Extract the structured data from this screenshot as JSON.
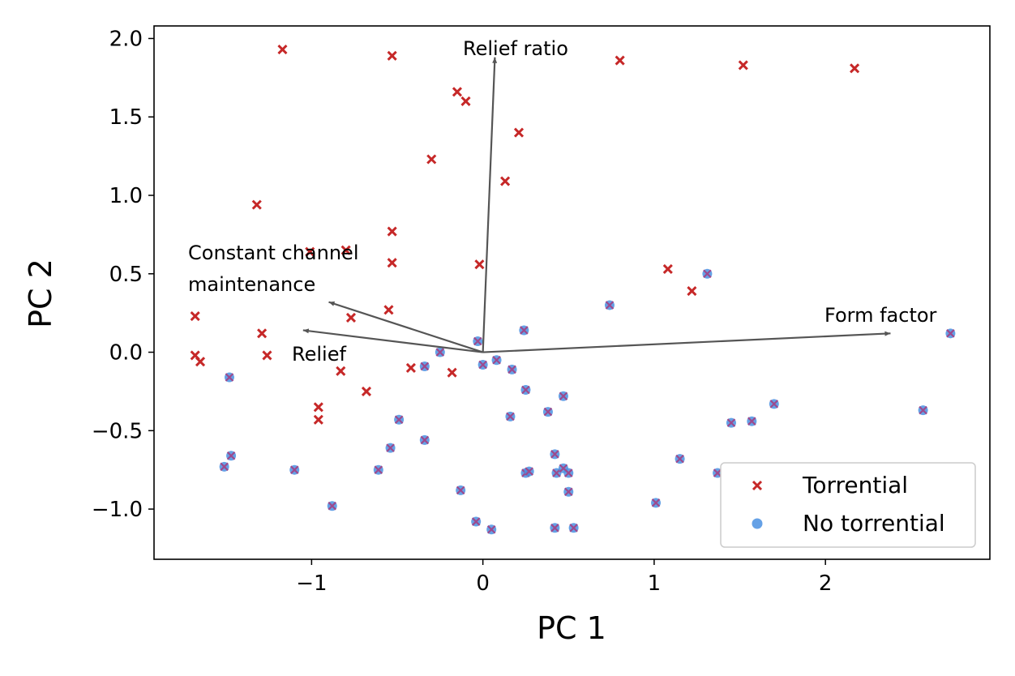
{
  "chart_data": {
    "type": "scatter",
    "xlabel": "PC 1",
    "ylabel": "PC 2",
    "xlim": [
      -1.92,
      2.96
    ],
    "ylim": [
      -1.32,
      2.08
    ],
    "x_ticks": [
      {
        "value": -1,
        "label": "−1"
      },
      {
        "value": 0,
        "label": "0"
      },
      {
        "value": 1,
        "label": "1"
      },
      {
        "value": 2,
        "label": "2"
      }
    ],
    "y_ticks": [
      {
        "value": 2.0,
        "label": "2.0"
      },
      {
        "value": 1.5,
        "label": "1.5"
      },
      {
        "value": 1.0,
        "label": "1.0"
      },
      {
        "value": 0.5,
        "label": "0.5"
      },
      {
        "value": 0.0,
        "label": "0.0"
      },
      {
        "value": -0.5,
        "label": "−0.5"
      },
      {
        "value": -1.0,
        "label": "−1.0"
      }
    ],
    "grid": false,
    "legend_position": "bottom-right",
    "series": [
      {
        "name": "Torrential",
        "marker": "x",
        "color": "#c62828",
        "points": [
          [
            -1.17,
            1.93
          ],
          [
            -0.53,
            1.89
          ],
          [
            0.8,
            1.86
          ],
          [
            1.52,
            1.83
          ],
          [
            2.17,
            1.81
          ],
          [
            -0.15,
            1.66
          ],
          [
            -0.1,
            1.6
          ],
          [
            0.21,
            1.4
          ],
          [
            -0.3,
            1.23
          ],
          [
            0.13,
            1.09
          ],
          [
            -1.32,
            0.94
          ],
          [
            -1.01,
            0.64
          ],
          [
            -0.53,
            0.77
          ],
          [
            -0.8,
            0.65
          ],
          [
            -0.53,
            0.57
          ],
          [
            -0.02,
            0.56
          ],
          [
            1.08,
            0.53
          ],
          [
            1.22,
            0.39
          ],
          [
            -0.55,
            0.27
          ],
          [
            -1.68,
            0.23
          ],
          [
            -0.77,
            0.22
          ],
          [
            -1.29,
            0.12
          ],
          [
            -1.68,
            -0.02
          ],
          [
            -1.65,
            -0.06
          ],
          [
            -1.26,
            -0.02
          ],
          [
            -0.83,
            -0.12
          ],
          [
            -0.42,
            -0.1
          ],
          [
            -0.18,
            -0.13
          ],
          [
            -0.68,
            -0.25
          ],
          [
            -0.96,
            -0.35
          ],
          [
            -0.96,
            -0.43
          ]
        ]
      },
      {
        "name": "No torrential",
        "marker": "o",
        "color": "#4a90e2",
        "cross_color": "#9c4a8e",
        "points": [
          [
            -0.03,
            0.07
          ],
          [
            0.24,
            0.14
          ],
          [
            0.74,
            0.3
          ],
          [
            1.31,
            0.5
          ],
          [
            2.73,
            0.12
          ],
          [
            -0.25,
            0.0
          ],
          [
            -0.34,
            -0.09
          ],
          [
            0.0,
            -0.08
          ],
          [
            0.08,
            -0.05
          ],
          [
            0.17,
            -0.11
          ],
          [
            -1.48,
            -0.16
          ],
          [
            0.25,
            -0.24
          ],
          [
            0.47,
            -0.28
          ],
          [
            1.7,
            -0.33
          ],
          [
            2.57,
            -0.37
          ],
          [
            0.38,
            -0.38
          ],
          [
            0.16,
            -0.41
          ],
          [
            -0.49,
            -0.43
          ],
          [
            1.45,
            -0.45
          ],
          [
            1.57,
            -0.44
          ],
          [
            -0.34,
            -0.56
          ],
          [
            -0.54,
            -0.61
          ],
          [
            -1.47,
            -0.66
          ],
          [
            0.42,
            -0.65
          ],
          [
            1.15,
            -0.68
          ],
          [
            -1.51,
            -0.73
          ],
          [
            -1.1,
            -0.75
          ],
          [
            -0.61,
            -0.75
          ],
          [
            0.25,
            -0.77
          ],
          [
            0.27,
            -0.76
          ],
          [
            0.43,
            -0.77
          ],
          [
            0.47,
            -0.74
          ],
          [
            0.5,
            -0.77
          ],
          [
            1.37,
            -0.77
          ],
          [
            -0.13,
            -0.88
          ],
          [
            0.5,
            -0.89
          ],
          [
            1.01,
            -0.96
          ],
          [
            -0.88,
            -0.98
          ],
          [
            -0.04,
            -1.08
          ],
          [
            0.05,
            -1.13
          ],
          [
            0.42,
            -1.12
          ],
          [
            0.53,
            -1.12
          ]
        ]
      }
    ],
    "vectors": [
      {
        "label": "Relief ratio",
        "end": [
          0.07,
          1.88
        ]
      },
      {
        "label": "Form factor",
        "end": [
          2.38,
          0.12
        ]
      },
      {
        "label": "Constant channel maintenance",
        "label_lines": [
          "Constant channel",
          "maintenance"
        ],
        "end": [
          -0.9,
          0.32
        ]
      },
      {
        "label": "Relief",
        "end": [
          -1.05,
          0.14
        ]
      }
    ],
    "vector_color": "#555555"
  }
}
